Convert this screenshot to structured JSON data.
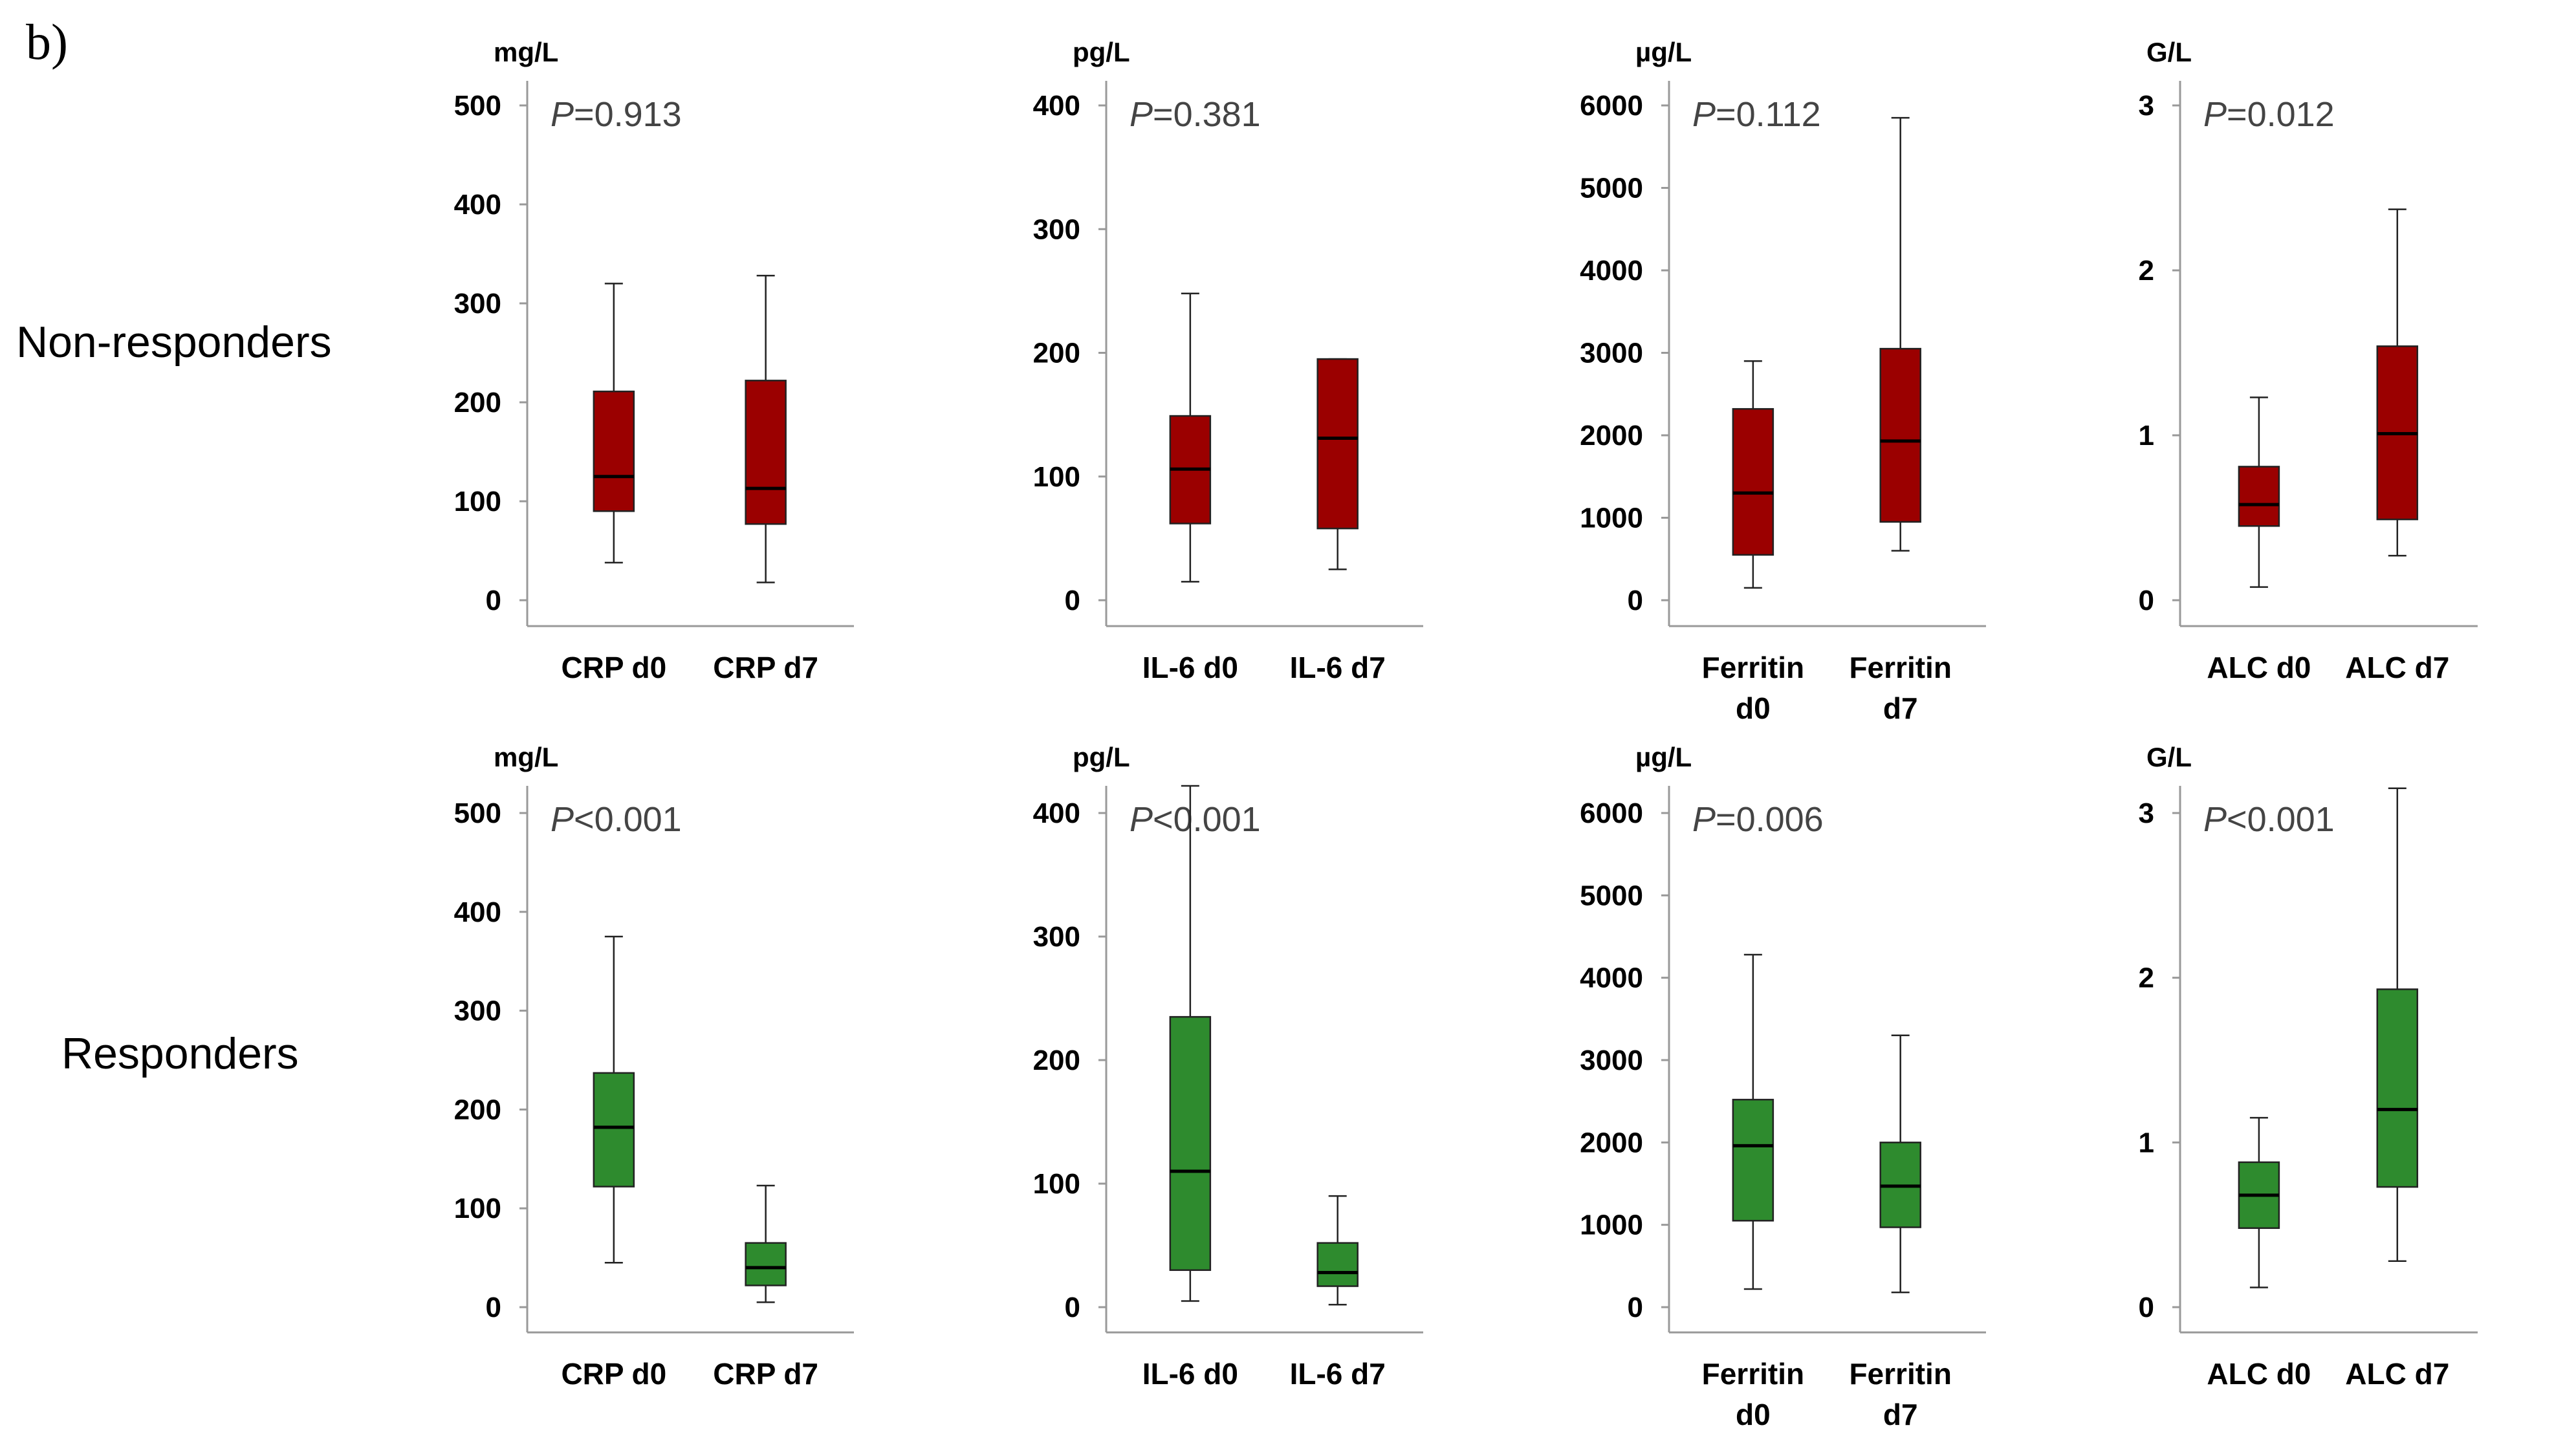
{
  "panel_label": "b)",
  "rows": [
    {
      "label": "Non-responders",
      "color": "#9b0000"
    },
    {
      "label": "Responders",
      "color": "#2e8b2e"
    }
  ],
  "colors": {
    "box_stroke": "#222222",
    "axis": "#999999",
    "median": "#000000"
  },
  "chart_data": [
    {
      "type": "box",
      "group": "Non-responders",
      "unit": "mg/L",
      "p_label": "P",
      "p_rest": "=0.913",
      "ylim": [
        0,
        500
      ],
      "yticks": [
        0,
        100,
        200,
        300,
        400,
        500
      ],
      "categories": [
        [
          "CRP d0"
        ],
        [
          "CRP d7"
        ]
      ],
      "boxes": [
        {
          "min": 38,
          "q1": 90,
          "median": 125,
          "q3": 211,
          "max": 320
        },
        {
          "min": 18,
          "q1": 77,
          "median": 113,
          "q3": 222,
          "max": 328
        }
      ]
    },
    {
      "type": "box",
      "group": "Non-responders",
      "unit": "pg/L",
      "p_label": "P",
      "p_rest": "=0.381",
      "ylim": [
        0,
        400
      ],
      "yticks": [
        0,
        100,
        200,
        300,
        400
      ],
      "categories": [
        [
          "IL-6 d0"
        ],
        [
          "IL-6 d7"
        ]
      ],
      "boxes": [
        {
          "min": 15,
          "q1": 62,
          "median": 106,
          "q3": 149,
          "max": 248
        },
        {
          "min": 25,
          "q1": 58,
          "median": 131,
          "q3": 195,
          "max": 195
        }
      ]
    },
    {
      "type": "box",
      "group": "Non-responders",
      "unit": "µg/L",
      "p_label": "P",
      "p_rest": "=0.112",
      "ylim": [
        0,
        6000
      ],
      "yticks": [
        0,
        1000,
        2000,
        3000,
        4000,
        5000,
        6000
      ],
      "categories": [
        [
          "Ferritin",
          "d0"
        ],
        [
          "Ferritin",
          "d7"
        ]
      ],
      "boxes": [
        {
          "min": 150,
          "q1": 550,
          "median": 1300,
          "q3": 2320,
          "max": 2900
        },
        {
          "min": 600,
          "q1": 950,
          "median": 1930,
          "q3": 3050,
          "max": 5850
        }
      ]
    },
    {
      "type": "box",
      "group": "Non-responders",
      "unit": "G/L",
      "p_label": "P",
      "p_rest": "=0.012",
      "ylim": [
        0,
        3
      ],
      "yticks": [
        0,
        1,
        2,
        3
      ],
      "categories": [
        [
          "ALC d0"
        ],
        [
          "ALC d7"
        ]
      ],
      "boxes": [
        {
          "min": 0.08,
          "q1": 0.45,
          "median": 0.58,
          "q3": 0.81,
          "max": 1.23
        },
        {
          "min": 0.27,
          "q1": 0.49,
          "median": 1.01,
          "q3": 1.54,
          "max": 2.37
        }
      ]
    },
    {
      "type": "box",
      "group": "Responders",
      "unit": "mg/L",
      "p_label": "P",
      "p_rest": "<0.001",
      "ylim": [
        0,
        500
      ],
      "yticks": [
        0,
        100,
        200,
        300,
        400,
        500
      ],
      "categories": [
        [
          "CRP d0"
        ],
        [
          "CRP d7"
        ]
      ],
      "boxes": [
        {
          "min": 45,
          "q1": 122,
          "median": 182,
          "q3": 237,
          "max": 375
        },
        {
          "min": 5,
          "q1": 22,
          "median": 40,
          "q3": 65,
          "max": 123
        }
      ]
    },
    {
      "type": "box",
      "group": "Responders",
      "unit": "pg/L",
      "p_label": "P",
      "p_rest": "<0.001",
      "ylim": [
        0,
        400
      ],
      "yticks": [
        0,
        100,
        200,
        300,
        400
      ],
      "categories": [
        [
          "IL-6 d0"
        ],
        [
          "IL-6 d7"
        ]
      ],
      "boxes": [
        {
          "min": 5,
          "q1": 30,
          "median": 110,
          "q3": 235,
          "max": 422
        },
        {
          "min": 2,
          "q1": 17,
          "median": 28,
          "q3": 52,
          "max": 90
        }
      ]
    },
    {
      "type": "box",
      "group": "Responders",
      "unit": "µg/L",
      "p_label": "P",
      "p_rest": "=0.006",
      "ylim": [
        0,
        6000
      ],
      "yticks": [
        0,
        1000,
        2000,
        3000,
        4000,
        5000,
        6000
      ],
      "categories": [
        [
          "Ferritin",
          "d0"
        ],
        [
          "Ferritin",
          "d7"
        ]
      ],
      "boxes": [
        {
          "min": 220,
          "q1": 1050,
          "median": 1960,
          "q3": 2520,
          "max": 4280
        },
        {
          "min": 180,
          "q1": 970,
          "median": 1470,
          "q3": 2000,
          "max": 3300
        }
      ]
    },
    {
      "type": "box",
      "group": "Responders",
      "unit": "G/L",
      "p_label": "P",
      "p_rest": "<0.001",
      "ylim": [
        0,
        3
      ],
      "yticks": [
        0,
        1,
        2,
        3
      ],
      "categories": [
        [
          "ALC d0"
        ],
        [
          "ALC d7"
        ]
      ],
      "boxes": [
        {
          "min": 0.12,
          "q1": 0.48,
          "median": 0.68,
          "q3": 0.88,
          "max": 1.15
        },
        {
          "min": 0.28,
          "q1": 0.73,
          "median": 1.2,
          "q3": 1.93,
          "max": 3.15
        }
      ]
    }
  ]
}
